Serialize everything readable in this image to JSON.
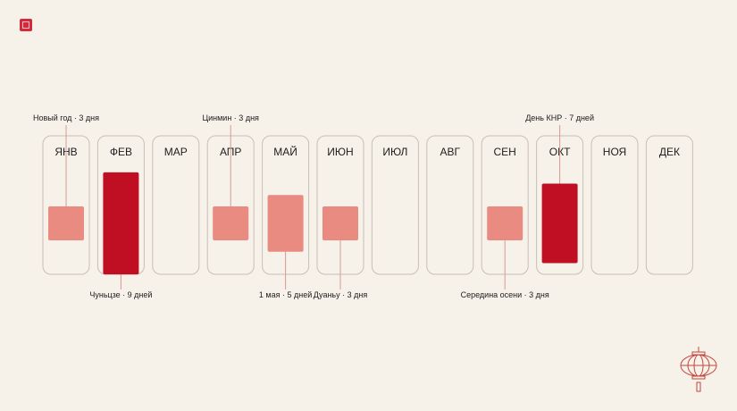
{
  "chart_data": {
    "type": "bar",
    "months": [
      "ЯНВ",
      "ФЕВ",
      "МАР",
      "АПР",
      "МАЙ",
      "ИЮН",
      "ИЮЛ",
      "АВГ",
      "СЕН",
      "ОКТ",
      "НОЯ",
      "ДЕК"
    ],
    "holidays": [
      {
        "month": 0,
        "days": 3,
        "label": "Новый год · 3 дня",
        "label_side": "top"
      },
      {
        "month": 1,
        "days": 9,
        "label": "Чуньцзе · 9 дней",
        "label_side": "bottom"
      },
      {
        "month": 3,
        "days": 3,
        "label": "Цинмин · 3 дня",
        "label_side": "top"
      },
      {
        "month": 4,
        "days": 5,
        "label": "1 мая · 5 дней",
        "label_side": "bottom"
      },
      {
        "month": 5,
        "days": 3,
        "label": "Дуаньу · 3 дня",
        "label_side": "bottom"
      },
      {
        "month": 8,
        "days": 3,
        "label": "Середина осени · 3 дня",
        "label_side": "bottom"
      },
      {
        "month": 9,
        "days": 7,
        "label": "День КНР · 7 дней",
        "label_side": "top"
      }
    ],
    "scale_max_days": 9,
    "colors": {
      "short": "#e98b80",
      "long": "#c00f23",
      "frame": "#c9bfb6",
      "leader": "#d89a92",
      "text": "#1e1e1e"
    }
  }
}
